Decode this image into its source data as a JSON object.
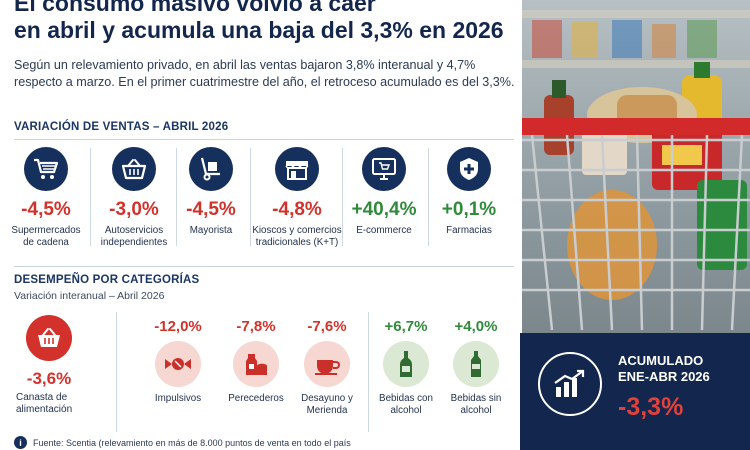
{
  "headline": {
    "line1": "El consumo masivo volvió a caer",
    "line2": "en abril y acumula una baja del 3,3% en 2026"
  },
  "lede": "Según un relevamiento privado, en abril las ventas bajaron 3,8% interanual y 4,7% respecto a marzo. En el primer cuatrimestre del año, el retroceso acumulado es del 3,3%.",
  "sales": {
    "title": "VARIACIÓN DE VENTAS – ABRIL 2026",
    "channels": [
      {
        "icon": "shopping-cart-icon",
        "value": "-4,5%",
        "label": "Supermercados de cadena"
      },
      {
        "icon": "shopping-basket-icon",
        "value": "-3,0%",
        "label": "Autoservicios independientes"
      },
      {
        "icon": "hand-truck-icon",
        "value": "-4,5%",
        "label": "Mayorista"
      },
      {
        "icon": "storefront-icon",
        "value": "-4,8%",
        "label": "Kioscos y comercios tradicionales (K+T)"
      },
      {
        "icon": "computer-cart-icon",
        "value": "+40,4%",
        "label": "E-commerce"
      },
      {
        "icon": "pharmacy-shield-icon",
        "value": "+0,1%",
        "label": "Farmacias"
      }
    ]
  },
  "categories": {
    "title": "DESEMPEÑO POR CATEGORÍAS",
    "subtitle": "Variación interanual – Abril 2026",
    "canasta": {
      "icon": "basket-icon",
      "value": "-3,6%",
      "label": "Canasta de alimentación"
    },
    "items": [
      {
        "icon": "candy-icon",
        "value": "-12,0%",
        "label": "Impulsivos"
      },
      {
        "icon": "milk-bread-icon",
        "value": "-7,8%",
        "label": "Perecederos"
      },
      {
        "icon": "coffee-cup-icon",
        "value": "-7,6%",
        "label": "Desayuno y Merienda"
      },
      {
        "icon": "wine-bottle-icon",
        "value": "+6,7%",
        "label": "Bebidas con alcohol"
      },
      {
        "icon": "soda-bottle-icon",
        "value": "+4,0%",
        "label": "Bebidas sin alcohol"
      }
    ]
  },
  "footer": {
    "source": "Fuente: Scentia (relevamiento en más de 8.000 puntos de venta en todo el país"
  },
  "accumulated": {
    "line1": "ACUMULADO",
    "line2": "ENE-ABR 2026",
    "value": "-3,3%",
    "icon": "rising-chart-icon"
  },
  "colors": {
    "navy": "#13264d",
    "negative": "#d2322b",
    "positive": "#2f8a3a"
  }
}
